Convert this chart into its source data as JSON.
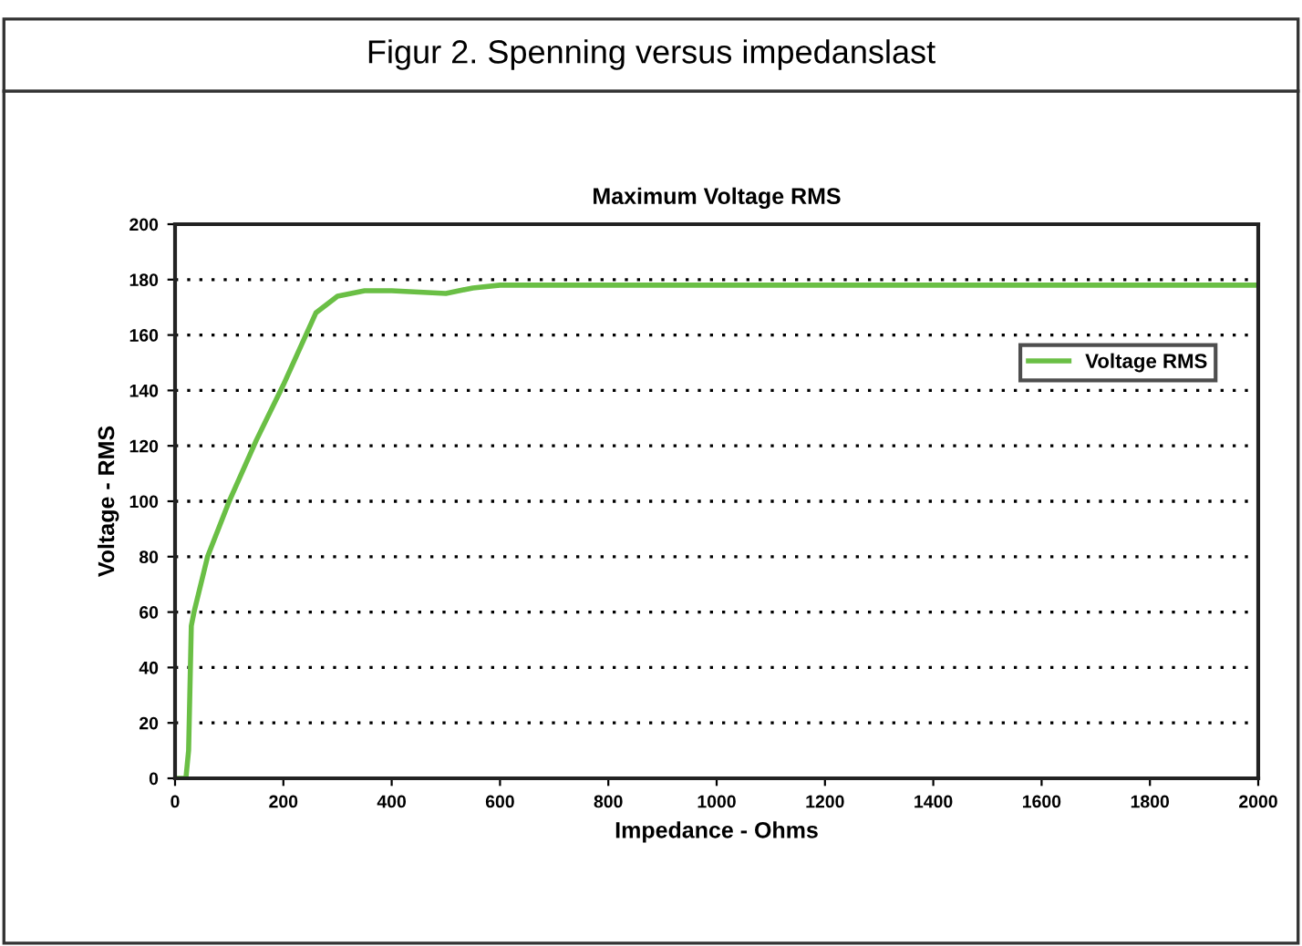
{
  "chart_data": {
    "type": "line",
    "title": "Maximum Voltage RMS",
    "xlabel": "Impedance - Ohms",
    "ylabel": "Voltage - RMS",
    "annotations": [
      "Figur 2. Spenning versus impedanslast"
    ],
    "series": [
      {
        "name": "Voltage RMS",
        "color": "#6abf45",
        "x": [
          0,
          20,
          25,
          30,
          35,
          60,
          100,
          150,
          200,
          230,
          260,
          300,
          350,
          400,
          450,
          500,
          550,
          600,
          1000,
          2000
        ],
        "values": [
          0,
          0,
          10,
          55,
          60,
          80,
          100,
          122,
          142,
          155,
          168,
          174,
          176,
          176,
          175.5,
          175,
          177,
          178,
          178,
          178
        ]
      }
    ],
    "xlim": [
      0,
      2000
    ],
    "xticks": [
      0,
      200,
      400,
      600,
      800,
      1000,
      1200,
      1400,
      1600,
      1800,
      2000
    ],
    "ylim": [
      0,
      200
    ],
    "yticks": [
      0,
      20,
      40,
      60,
      80,
      100,
      120,
      140,
      160,
      180,
      200
    ],
    "grid": "y",
    "legend": "right",
    "marker": "none",
    "line_style": "solid"
  }
}
